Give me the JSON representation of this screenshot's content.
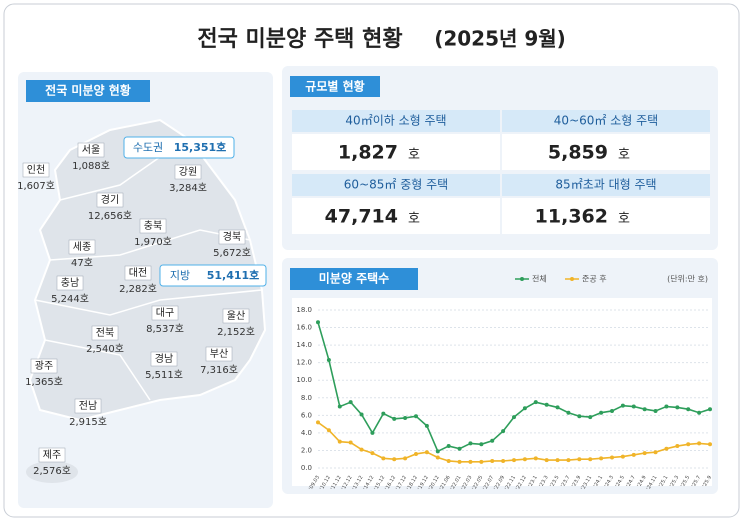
{
  "header": {
    "title": "전국 미분양 주택 현황",
    "period": "(2025년 9월)"
  },
  "map": {
    "label": "전국 미분양 현황",
    "capital": {
      "name": "수도권",
      "value": "15,351호"
    },
    "local": {
      "name": "지방",
      "value": "51,411호"
    },
    "regions": [
      {
        "name": "서울",
        "value": "1,088호"
      },
      {
        "name": "인천",
        "value": "1,607호"
      },
      {
        "name": "경기",
        "value": "12,656호"
      },
      {
        "name": "강원",
        "value": "3,284호"
      },
      {
        "name": "충북",
        "value": "1,970호"
      },
      {
        "name": "세종",
        "value": "47호"
      },
      {
        "name": "충남",
        "value": "5,244호"
      },
      {
        "name": "대전",
        "value": "2,282호"
      },
      {
        "name": "경북",
        "value": "5,672호"
      },
      {
        "name": "대구",
        "value": "8,537호"
      },
      {
        "name": "전북",
        "value": "2,540호"
      },
      {
        "name": "울산",
        "value": "2,152호"
      },
      {
        "name": "광주",
        "value": "1,365호"
      },
      {
        "name": "경남",
        "value": "5,511호"
      },
      {
        "name": "부산",
        "value": "7,316호"
      },
      {
        "name": "전남",
        "value": "2,915호"
      },
      {
        "name": "제주",
        "value": "2,576호"
      }
    ]
  },
  "size": {
    "label": "규모별 현황",
    "unit": "호",
    "cards": [
      {
        "name": "40㎡이하 소형 주택",
        "value": "1,827"
      },
      {
        "name": "40~60㎡ 소형 주택",
        "value": "5,859"
      },
      {
        "name": "60~85㎡ 중형 주택",
        "value": "47,714"
      },
      {
        "name": "85㎡초과 대형 주택",
        "value": "11,362"
      }
    ]
  },
  "chart_data": {
    "type": "line",
    "title": "미분양 주택수",
    "unit": "(단위:만 호)",
    "categories": [
      "'09.03",
      "'10.12",
      "'11.12",
      "'12.12",
      "'13.12",
      "'14.12",
      "'15.12",
      "'16.12",
      "'17.12",
      "'18.12",
      "'19.12",
      "'20.12",
      "'21.06",
      "'22.01",
      "'22.03",
      "'22.05",
      "'22.07",
      "'22.09",
      "'22.11",
      "'22.12",
      "'23.1",
      "'23.3",
      "'23.5",
      "'23.7",
      "'23.9",
      "'23.11",
      "'24.1",
      "'24.3",
      "'24.5",
      "'24.7",
      "'24.9",
      "'24.11",
      "'25.1",
      "'25.3",
      "'25.5",
      "'25.7",
      "'25.9"
    ],
    "series": [
      {
        "name": "전체",
        "color": "#2e9e5b",
        "values": [
          16.6,
          12.3,
          7.0,
          7.5,
          6.1,
          4.0,
          6.2,
          5.6,
          5.7,
          5.9,
          4.8,
          1.9,
          2.5,
          2.2,
          2.8,
          2.7,
          3.1,
          4.2,
          5.8,
          6.8,
          7.5,
          7.2,
          6.9,
          6.3,
          5.9,
          5.8,
          6.3,
          6.5,
          7.1,
          7.0,
          6.7,
          6.5,
          7.0,
          6.9,
          6.7,
          6.3,
          6.7
        ]
      },
      {
        "name": "준공 후",
        "color": "#f0b429",
        "values": [
          5.2,
          4.3,
          3.0,
          2.9,
          2.1,
          1.7,
          1.1,
          1.0,
          1.1,
          1.6,
          1.8,
          1.2,
          0.8,
          0.7,
          0.7,
          0.7,
          0.8,
          0.8,
          0.9,
          1.0,
          1.1,
          0.9,
          0.9,
          0.9,
          1.0,
          1.0,
          1.1,
          1.2,
          1.3,
          1.5,
          1.7,
          1.8,
          2.2,
          2.5,
          2.7,
          2.8,
          2.7
        ]
      }
    ],
    "ylim": [
      0,
      18
    ],
    "yticks": [
      {
        "value": 0,
        "label": "0.0"
      },
      {
        "value": 2,
        "label": "2.0"
      },
      {
        "value": 4,
        "label": "4.0"
      },
      {
        "value": 6,
        "label": "6.0"
      },
      {
        "value": 8,
        "label": "8.0"
      },
      {
        "value": 10,
        "label": "10.0"
      },
      {
        "value": 12,
        "label": "12.0"
      },
      {
        "value": 14,
        "label": "14.0"
      },
      {
        "value": 16,
        "label": "16.0"
      },
      {
        "value": 18,
        "label": "18.0"
      }
    ],
    "grid": true
  }
}
